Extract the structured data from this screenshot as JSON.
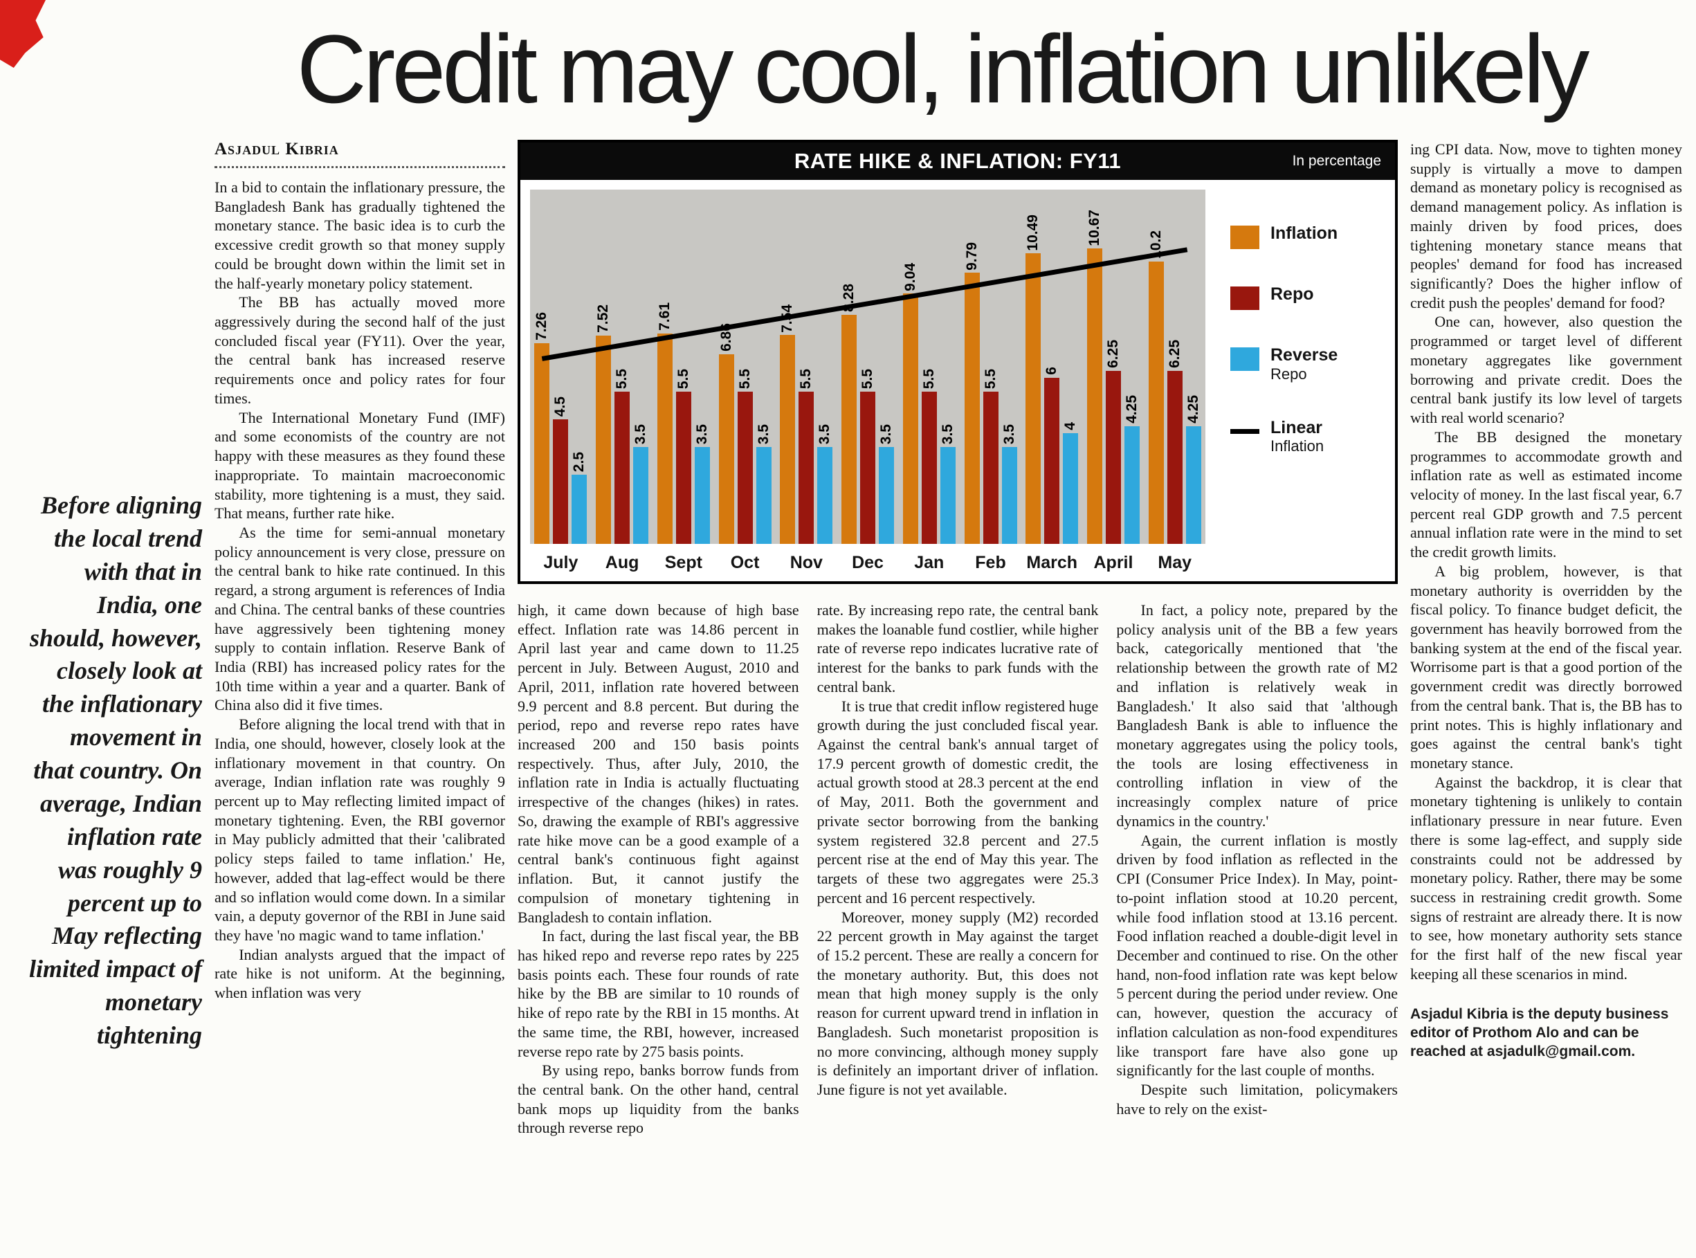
{
  "headline": "Credit may cool, inflation unlikely",
  "byline": "Asjadul Kibria",
  "pull_quote": "Before aligning the local trend with that in India, one should, however, closely look at the inflationary movement in that country. On average, Indian inflation rate was roughly 9 percent up to May reflecting limited impact of monetary tightening",
  "columns": {
    "col1": [
      "In a bid to contain the inflationary pressure, the Bangladesh Bank has gradually tightened the monetary stance. The basic idea is to curb the excessive credit growth so that money supply could be brought down within the limit set in the half-yearly monetary policy statement.",
      "The BB has actually moved more aggressively during the second half of the just concluded fiscal year (FY11). Over the year, the central bank has increased reserve requirements once and policy rates for four times.",
      "The International Monetary Fund (IMF) and some economists of the country are not happy with these measures as they found these inappropriate. To maintain macroeconomic stability, more tightening is a must, they said. That means, further rate hike.",
      "As the time for semi-annual monetary policy announcement is very close, pressure on the central bank to hike rate continued. In this regard, a strong argument is references of India and China. The central banks of these countries have aggressively been tightening money supply to contain inflation. Reserve Bank of India (RBI) has increased policy rates for the 10th time within a year and a quarter. Bank of China also did it five times.",
      "Before aligning the local trend with that in India, one should, however, closely look at the inflationary movement in that country. On average, Indian inflation rate was roughly 9 percent up to May reflecting limited impact of monetary tightening. Even, the RBI governor in May publicly admitted that their 'calibrated policy steps failed to tame inflation.' He, however, added that lag-effect would be there and so inflation would come down. In a similar vain, a deputy governor of the RBI in June said they have 'no magic wand to tame inflation.'",
      "Indian analysts argued that the impact of rate hike is not uniform. At the beginning, when inflation was very"
    ],
    "col2": [
      "high, it came down because of high base effect. Inflation rate was 14.86 percent in April last year and came down to 11.25 percent in July. Between August, 2010 and April, 2011, inflation rate hovered between 9.9 percent and 8.8 percent. But during the period, repo and reverse repo rates have increased 200 and 150 basis points respectively. Thus, after July, 2010, the inflation rate in India is actually fluctuating irrespective of the changes (hikes) in rates. So, drawing the example of RBI's aggressive rate hike move can be a good example of a central bank's continuous fight against inflation. But, it cannot justify the compulsion of monetary tightening in Bangladesh to contain inflation.",
      "In fact, during the last fiscal year, the BB has hiked repo and reverse repo rates by 225 basis points each. These four rounds of rate hike by the BB are similar to 10 rounds of hike of repo rate by the RBI in 15 months. At the same time, the RBI, however, increased reverse repo rate by 275 basis points.",
      "By using repo, banks borrow funds from the central bank. On the other hand, central bank mops up liquidity from the banks through reverse repo"
    ],
    "col3": [
      "rate. By increasing repo rate, the central bank makes the loanable fund costlier, while higher rate of reverse repo indicates lucrative rate of interest for the banks to park funds with the central bank.",
      "It is true that credit inflow registered huge growth during the just concluded fiscal year. Against the central bank's annual target of 17.9 percent growth of domestic credit, the actual growth stood at 28.3 percent at the end of May, 2011. Both the government and private sector borrowing from the banking system registered 32.8 percent and 27.5 percent rise at the end of May this year. The targets of these two aggregates were 25.3 percent and 16 percent respectively.",
      "Moreover, money supply (M2) recorded 22 percent growth in May against the target of 15.2 percent. These are really a concern for the monetary authority. But, this does not mean that high money supply is the only reason for current upward trend in inflation in Bangladesh. Such monetarist proposition is no more convincing, although money supply is definitely an important driver of inflation. June figure is not yet available."
    ],
    "col4": [
      "In fact, a policy note, prepared by the policy analysis unit of the BB a few years back, categorically mentioned that 'the relationship between the growth rate of M2 and inflation is relatively weak in Bangladesh.' It also said that 'although Bangladesh Bank is able to influence the monetary aggregates using the policy tools, the tools are losing effectiveness in controlling inflation in view of the increasingly complex nature of price dynamics in the country.'",
      "Again, the current inflation is mostly driven by food inflation as reflected in the CPI (Consumer Price Index). In May, point-to-point inflation stood at 10.20 percent, while food inflation stood at 13.16 percent. Food inflation reached a double-digit level in December and continued to rise. On the other hand, non-food inflation rate was kept below 5 percent during the period under review. One can, however, question the accuracy of inflation calculation as non-food expenditures like transport fare have also gone up significantly for the last couple of months.",
      "Despite such limitation, policymakers have to rely on the exist-"
    ],
    "col5": [
      "ing CPI data. Now, move to tighten money supply is virtually a move to dampen demand as monetary policy is recognised as demand management policy. As inflation is mainly driven by food prices, does tightening monetary stance means that peoples' demand for food has increased significantly? Does the higher inflow of credit push the peoples' demand for food?",
      "One can, however, also question the programmed or target level of different monetary aggregates like government borrowing and private credit. Does the central bank justify its low level of targets with real world scenario?",
      "The BB designed the monetary programmes to accommodate growth and inflation rate as well as estimated income velocity of money. In the last fiscal year, 6.7 percent real GDP growth and 7.5 percent annual inflation rate were in the mind to set the credit growth limits.",
      "A big problem, however, is that monetary authority is overridden by the fiscal policy. To finance budget deficit, the government has heavily borrowed from the banking system at the end of the fiscal year. Worrisome part is that a good portion of the government credit was directly borrowed from the central bank. That is, the BB has to print notes. This is highly inflationary and goes against the central bank's tight monetary stance.",
      "Against the backdrop, it is clear that monetary tightening is unlikely to contain inflationary pressure in near future. Even there is some lag-effect, and supply side constraints could not be addressed by monetary policy. Rather, there may be some success in restraining credit growth. Some signs of restraint are already there. It is now to see, how monetary authority sets stance for the first half of the new fiscal year keeping all these scenarios in mind."
    ]
  },
  "footer_credit": "Asjadul Kibria is the deputy business editor of Prothom Alo and can be reached at asjadulk@gmail.com.",
  "chart_data": {
    "type": "bar",
    "title": "RATE HIKE & INFLATION: FY11",
    "unit_label": "In percentage",
    "categories": [
      "July",
      "Aug",
      "Sept",
      "Oct",
      "Nov",
      "Dec",
      "Jan",
      "Feb",
      "March",
      "April",
      "May"
    ],
    "series": [
      {
        "name": "Inflation",
        "color": "#d5790e",
        "values": [
          7.26,
          7.52,
          7.61,
          6.86,
          7.54,
          8.28,
          9.04,
          9.79,
          10.49,
          10.67,
          10.2
        ]
      },
      {
        "name": "Repo",
        "color": "#99170e",
        "values": [
          4.5,
          5.5,
          5.5,
          5.5,
          5.5,
          5.5,
          5.5,
          5.5,
          6,
          6.25,
          6.25
        ]
      },
      {
        "name": "Reverse Repo",
        "color": "#2fa8dd",
        "values": [
          2.5,
          3.5,
          3.5,
          3.5,
          3.5,
          3.5,
          3.5,
          3.5,
          4,
          4.25,
          4.25
        ]
      }
    ],
    "trend": {
      "name": "Linear Inflation",
      "color": "#000000",
      "start": 6.69,
      "end": 10.63
    },
    "legend": [
      {
        "label_top": "Inflation",
        "label_bottom": "",
        "color": "#d5790e",
        "type": "swatch"
      },
      {
        "label_top": "Repo",
        "label_bottom": "",
        "color": "#99170e",
        "type": "swatch"
      },
      {
        "label_top": "Reverse",
        "label_bottom": "Repo",
        "color": "#2fa8dd",
        "type": "swatch"
      },
      {
        "label_top": "Linear",
        "label_bottom": "Inflation",
        "color": "#000000",
        "type": "line"
      }
    ],
    "ylim": [
      0,
      11.5
    ],
    "grid": false,
    "legend_position": "right"
  }
}
